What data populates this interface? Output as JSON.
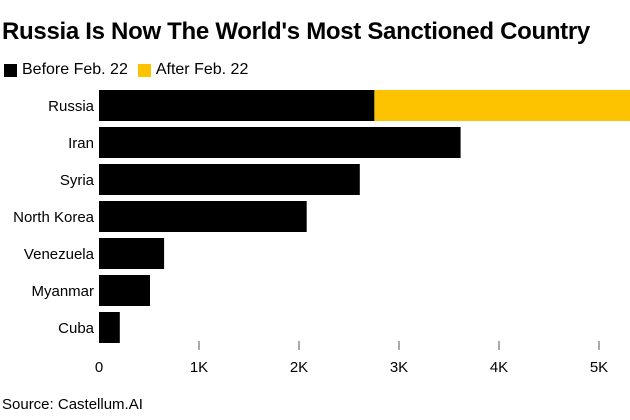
{
  "chart_data": {
    "type": "bar",
    "orientation": "horizontal",
    "stacked": true,
    "title": "Russia Is Now The World's Most Sanctioned Country",
    "categories": [
      "Russia",
      "Iran",
      "Syria",
      "North Korea",
      "Venezuela",
      "Myanmar",
      "Cuba"
    ],
    "series": [
      {
        "name": "Before Feb. 22",
        "color": "#000000",
        "values": [
          2754,
          3616,
          2608,
          2077,
          651,
          510,
          208
        ]
      },
      {
        "name": "After Feb. 22",
        "color": "#fdc300",
        "values": [
          2778,
          0,
          0,
          0,
          0,
          0,
          0
        ]
      }
    ],
    "xlim": [
      0,
      5400
    ],
    "x_ticks": [
      0,
      1000,
      2000,
      3000,
      4000,
      5000
    ],
    "x_tick_labels": [
      "0",
      "1K",
      "2K",
      "3K",
      "4K",
      "5K"
    ],
    "legend_position": "top-left",
    "grid": false,
    "source": "Source: Castellum.AI"
  }
}
